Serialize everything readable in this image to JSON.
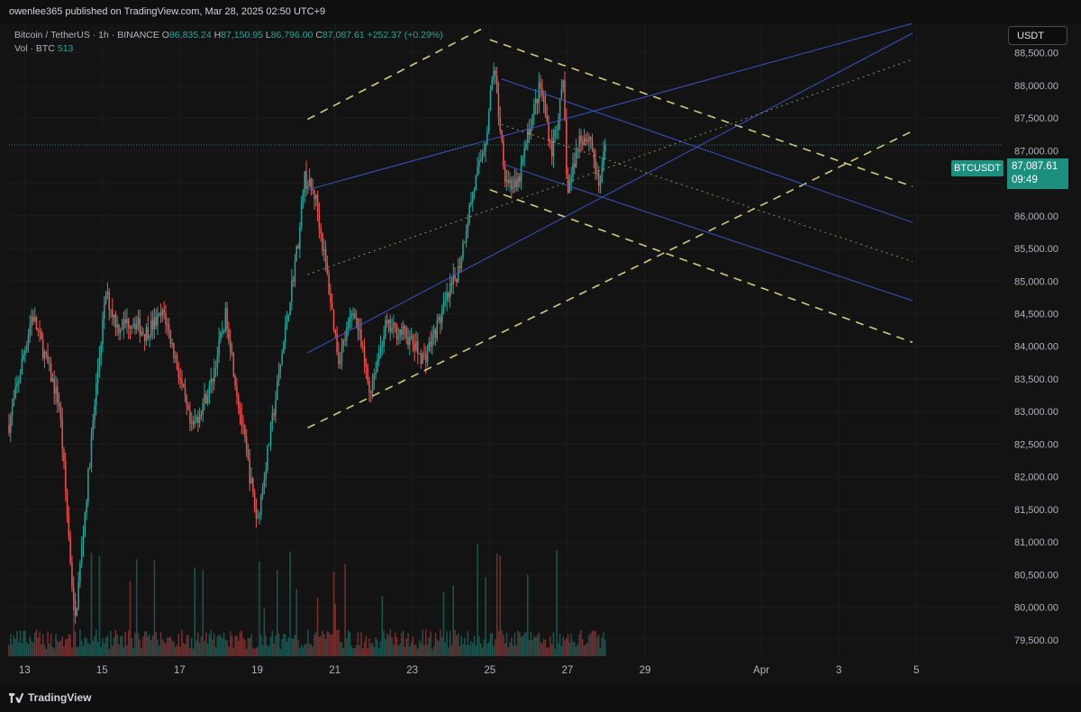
{
  "header": {
    "published": "owenlee365 published on TradingView.com, Mar 28, 2025 02:50 UTC+9"
  },
  "legend": {
    "symbol": "Bitcoin / TetherUS · 1h · BINANCE",
    "o_label": "O",
    "o_value": "86,835.24",
    "h_label": "H",
    "h_value": "87,150.95",
    "l_label": "L",
    "l_value": "86,796.00",
    "c_label": "C",
    "c_value": "87,087.61",
    "change": "+252.37 (+0.29%)",
    "vol_label": "Vol · BTC",
    "vol_value": "513"
  },
  "currency_button": "USDT",
  "price_tag": {
    "symbol": "BTCUSDT",
    "price": "87,087.61",
    "countdown": "09:49"
  },
  "footer": {
    "brand": "TradingView"
  },
  "colors": {
    "up": "#26a69a",
    "down": "#ef5350",
    "channel_yellow": "#e6e08a",
    "channel_blue": "#3d5bd6",
    "background": "#131313"
  },
  "chart_data": {
    "type": "candlestick",
    "ylim": [
      79250,
      88950
    ],
    "y_ticks": [
      "88,500.00",
      "88,000.00",
      "87,500.00",
      "87,000.00",
      "86,500.00",
      "86,000.00",
      "85,500.00",
      "85,000.00",
      "84,500.00",
      "84,000.00",
      "83,500.00",
      "83,000.00",
      "82,500.00",
      "82,000.00",
      "81,500.00",
      "81,000.00",
      "80,500.00",
      "80,000.00",
      "79,500.00"
    ],
    "y_tick_values": [
      88500,
      88000,
      87500,
      87000,
      86500,
      86000,
      85500,
      85000,
      84500,
      84000,
      83500,
      83000,
      82500,
      82000,
      81500,
      81000,
      80500,
      80000,
      79500
    ],
    "x_tick_labels": [
      "13",
      "15",
      "17",
      "19",
      "21",
      "23",
      "25",
      "27",
      "29",
      "Apr",
      "3",
      "5"
    ],
    "x_tick_days": [
      13,
      15,
      17,
      19,
      21,
      23,
      25,
      27,
      29,
      32,
      34,
      36
    ],
    "xlim_days": [
      12.6,
      38.2
    ],
    "last_close": 87087.61,
    "price_path": [
      [
        12.6,
        82800
      ],
      [
        13.2,
        84500
      ],
      [
        13.9,
        83100
      ],
      [
        14.3,
        79750
      ],
      [
        14.9,
        83700
      ],
      [
        15.1,
        84800
      ],
      [
        15.4,
        84300
      ],
      [
        15.8,
        84400
      ],
      [
        16.1,
        84200
      ],
      [
        16.6,
        84500
      ],
      [
        16.9,
        83800
      ],
      [
        17.3,
        82700
      ],
      [
        17.8,
        83400
      ],
      [
        18.2,
        84500
      ],
      [
        18.5,
        83200
      ],
      [
        19.0,
        81300
      ],
      [
        19.5,
        83300
      ],
      [
        20.1,
        85800
      ],
      [
        20.2,
        86600
      ],
      [
        20.5,
        86300
      ],
      [
        20.8,
        85100
      ],
      [
        21.1,
        83800
      ],
      [
        21.5,
        84600
      ],
      [
        21.9,
        83300
      ],
      [
        22.3,
        84300
      ],
      [
        22.8,
        84200
      ],
      [
        23.3,
        83800
      ],
      [
        23.7,
        84400
      ],
      [
        24.2,
        85200
      ],
      [
        24.5,
        86200
      ],
      [
        24.9,
        87200
      ],
      [
        25.1,
        88300
      ],
      [
        25.4,
        86600
      ],
      [
        25.7,
        86400
      ],
      [
        26.0,
        87300
      ],
      [
        26.3,
        88000
      ],
      [
        26.6,
        87000
      ],
      [
        26.9,
        88000
      ],
      [
        27.0,
        86300
      ],
      [
        27.3,
        87200
      ],
      [
        27.6,
        87200
      ],
      [
        27.8,
        86400
      ],
      [
        28.0,
        87087.61
      ]
    ],
    "channels": [
      {
        "color": "#e6e08a",
        "style": "dashed",
        "lines": [
          [
            [
              20.3,
              87480
            ],
            [
              24.9,
              88900
            ]
          ],
          [
            [
              20.3,
              82750
            ],
            [
              35.9,
              87300
            ]
          ],
          [
            [
              25.0,
              86400
            ],
            [
              35.9,
              84060
            ]
          ],
          [
            [
              25.0,
              88700
            ],
            [
              35.9,
              86450
            ]
          ]
        ]
      },
      {
        "color": "#3d5bd6",
        "style": "solid",
        "lines": [
          [
            [
              20.3,
              86400
            ],
            [
              35.9,
              88950
            ]
          ],
          [
            [
              20.3,
              83900
            ],
            [
              35.9,
              88800
            ]
          ],
          [
            [
              25.3,
              86800
            ],
            [
              35.9,
              84700
            ]
          ],
          [
            [
              25.3,
              88100
            ],
            [
              35.9,
              85900
            ]
          ]
        ]
      },
      {
        "color": "#e6e08a",
        "style": "dotted",
        "lines": [
          [
            [
              20.3,
              85100
            ],
            [
              35.9,
              88400
            ]
          ],
          [
            [
              25.3,
              87400
            ],
            [
              35.9,
              85300
            ]
          ]
        ]
      }
    ]
  }
}
